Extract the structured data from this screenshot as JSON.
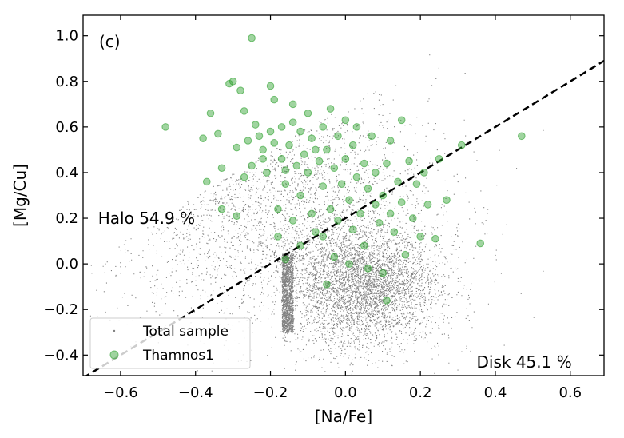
{
  "chart_data": {
    "type": "scatter",
    "panel_label": "(c)",
    "xlabel": "[Na/Fe]",
    "ylabel": "[Mg/Cu]",
    "xlim": [
      -0.7,
      0.69
    ],
    "ylim": [
      -0.49,
      1.09
    ],
    "xticks": [
      -0.6,
      -0.4,
      -0.2,
      0.0,
      0.2,
      0.4,
      0.6
    ],
    "yticks": [
      -0.4,
      -0.2,
      0.0,
      0.2,
      0.4,
      0.6,
      0.8,
      1.0
    ],
    "xtick_labels": [
      "−0.6",
      "−0.4",
      "−0.2",
      "0.0",
      "0.2",
      "0.4",
      "0.6"
    ],
    "ytick_labels": [
      "−0.4",
      "−0.2",
      "0.0",
      "0.2",
      "0.4",
      "0.6",
      "0.8",
      "1.0"
    ],
    "grid": false,
    "legend_position": "lower-left",
    "annotations": [
      {
        "text": "Halo 54.9 %",
        "x": -0.66,
        "y": 0.2
      },
      {
        "text": "Disk 45.1 %",
        "x": 0.35,
        "y": -0.43
      }
    ],
    "divider_line": {
      "style": "dashed",
      "color": "#000000",
      "slope": 1,
      "intercept": 0.2
    },
    "series": [
      {
        "name": "Total sample",
        "color": "#808080",
        "marker": "dot",
        "density_description": "dense cloud centered near (0.05, -0.1), left edge at -0.17, sparse halo extending to 0.68 in x and 0.9 in y",
        "core": {
          "cx": 0.05,
          "cy": -0.1,
          "sx": 0.1,
          "sy": 0.13,
          "xmin": -0.17
        }
      },
      {
        "name": "Thamnos1",
        "color": "#2ca02c",
        "marker": "circle",
        "points": [
          [
            -0.48,
            0.6
          ],
          [
            -0.38,
            0.55
          ],
          [
            -0.37,
            0.36
          ],
          [
            -0.36,
            0.66
          ],
          [
            -0.34,
            0.57
          ],
          [
            -0.33,
            0.24
          ],
          [
            -0.31,
            0.79
          ],
          [
            -0.3,
            0.8
          ],
          [
            -0.29,
            0.51
          ],
          [
            -0.29,
            0.21
          ],
          [
            -0.28,
            0.76
          ],
          [
            -0.27,
            0.67
          ],
          [
            -0.26,
            0.54
          ],
          [
            -0.25,
            0.99
          ],
          [
            -0.25,
            0.43
          ],
          [
            -0.24,
            0.61
          ],
          [
            -0.23,
            0.56
          ],
          [
            -0.22,
            0.5
          ],
          [
            -0.21,
            0.4
          ],
          [
            -0.2,
            0.58
          ],
          [
            -0.2,
            0.78
          ],
          [
            -0.19,
            0.72
          ],
          [
            -0.19,
            0.53
          ],
          [
            -0.18,
            0.24
          ],
          [
            -0.18,
            0.12
          ],
          [
            -0.17,
            0.46
          ],
          [
            -0.17,
            0.6
          ],
          [
            -0.16,
            0.35
          ],
          [
            -0.16,
            0.02
          ],
          [
            -0.15,
            0.52
          ],
          [
            -0.14,
            0.7
          ],
          [
            -0.14,
            0.62
          ],
          [
            -0.13,
            0.43
          ],
          [
            -0.12,
            0.58
          ],
          [
            -0.12,
            0.3
          ],
          [
            -0.11,
            0.48
          ],
          [
            -0.1,
            0.66
          ],
          [
            -0.1,
            0.4
          ],
          [
            -0.09,
            0.22
          ],
          [
            -0.09,
            0.55
          ],
          [
            -0.08,
            0.14
          ],
          [
            -0.07,
            0.45
          ],
          [
            -0.06,
            0.6
          ],
          [
            -0.06,
            0.34
          ],
          [
            -0.05,
            0.5
          ],
          [
            -0.04,
            0.68
          ],
          [
            -0.04,
            0.24
          ],
          [
            -0.03,
            0.42
          ],
          [
            -0.03,
            0.03
          ],
          [
            -0.02,
            0.56
          ],
          [
            -0.01,
            0.35
          ],
          [
            0.0,
            0.63
          ],
          [
            0.0,
            0.46
          ],
          [
            0.01,
            0.28
          ],
          [
            0.01,
            0.0
          ],
          [
            0.02,
            0.52
          ],
          [
            0.03,
            0.38
          ],
          [
            0.03,
            0.6
          ],
          [
            0.04,
            0.22
          ],
          [
            0.05,
            0.44
          ],
          [
            0.05,
            0.08
          ],
          [
            0.06,
            0.33
          ],
          [
            0.06,
            -0.02
          ],
          [
            0.07,
            0.56
          ],
          [
            0.08,
            0.26
          ],
          [
            0.08,
            0.4
          ],
          [
            0.09,
            0.18
          ],
          [
            0.1,
            -0.04
          ],
          [
            0.1,
            0.3
          ],
          [
            0.11,
            -0.16
          ],
          [
            0.11,
            0.44
          ],
          [
            0.12,
            0.22
          ],
          [
            0.13,
            0.14
          ],
          [
            0.14,
            0.36
          ],
          [
            0.15,
            0.63
          ],
          [
            0.15,
            0.27
          ],
          [
            0.16,
            0.04
          ],
          [
            0.17,
            0.45
          ],
          [
            0.18,
            0.2
          ],
          [
            0.19,
            0.35
          ],
          [
            0.2,
            0.12
          ],
          [
            0.21,
            0.4
          ],
          [
            0.22,
            0.26
          ],
          [
            0.24,
            0.11
          ],
          [
            0.25,
            0.46
          ],
          [
            0.27,
            0.28
          ],
          [
            0.31,
            0.52
          ],
          [
            0.36,
            0.09
          ],
          [
            0.47,
            0.56
          ],
          [
            -0.14,
            0.19
          ],
          [
            -0.12,
            0.08
          ],
          [
            -0.06,
            0.12
          ],
          [
            -0.02,
            0.19
          ],
          [
            0.02,
            0.15
          ],
          [
            -0.05,
            -0.09
          ],
          [
            -0.16,
            0.41
          ],
          [
            -0.22,
            0.46
          ],
          [
            -0.27,
            0.38
          ],
          [
            -0.33,
            0.42
          ],
          [
            -0.08,
            0.5
          ],
          [
            0.12,
            0.54
          ]
        ]
      }
    ]
  }
}
